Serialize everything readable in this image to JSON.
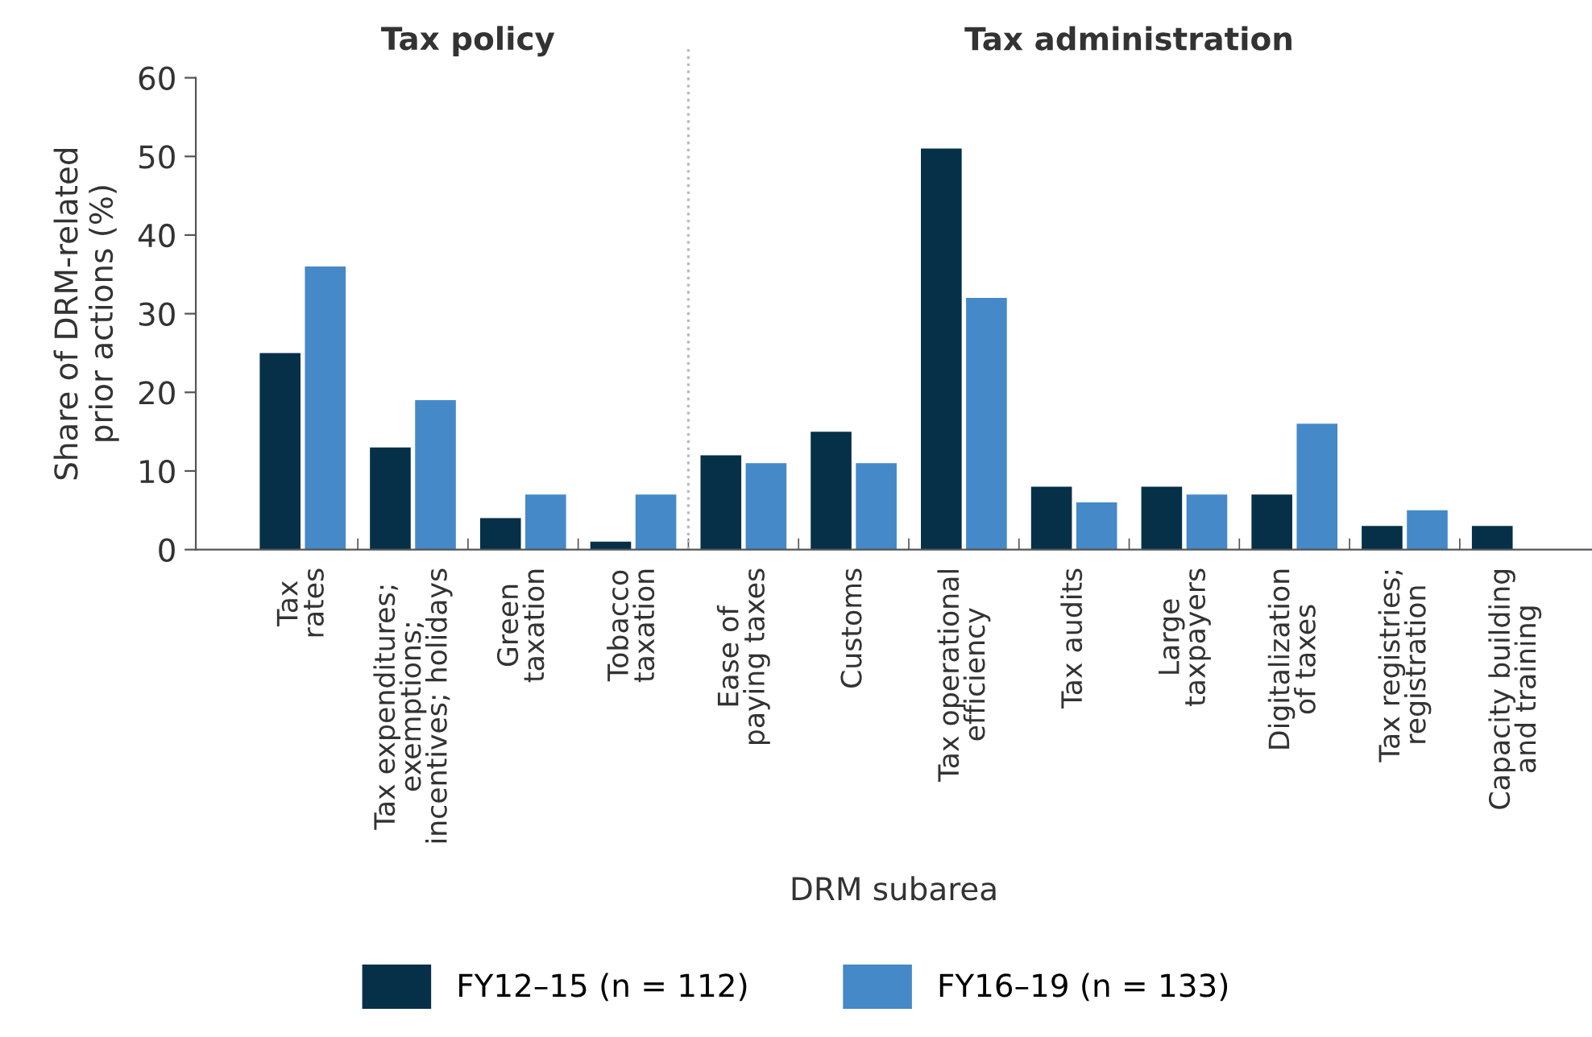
{
  "chart_data": {
    "type": "bar",
    "categories": [
      "Tax\nrates",
      "Tax expenditures;\nexemptions;\nincentives; holidays",
      "Green\ntaxation",
      "Tobacco\ntaxation",
      "Ease of\npaying taxes",
      "Customs",
      "Tax operational\nefficiency",
      "Tax audits",
      "Large\ntaxpayers",
      "Digitalization\nof taxes",
      "Tax registries;\nregistration",
      "Capacity building\nand training"
    ],
    "series": [
      {
        "name": "FY12–15 (n = 112)",
        "color": "#053047",
        "values": [
          25,
          13,
          4,
          1,
          12,
          15,
          51,
          8,
          8,
          7,
          3,
          3
        ]
      },
      {
        "name": "FY16–19 (n = 133)",
        "color": "#4589c8",
        "values": [
          36,
          19,
          7,
          7,
          11,
          11,
          32,
          6,
          7,
          16,
          5,
          null
        ]
      }
    ],
    "xlabel": "DRM subarea",
    "ylabel": "Share of DRM-related\nprior actions (%)",
    "ylim": [
      0,
      60
    ],
    "yticks": [
      0,
      10,
      20,
      30,
      40,
      50,
      60
    ],
    "annotations": [
      "Tax policy",
      "Tax administration"
    ],
    "legend": "bottom",
    "grid": false
  }
}
